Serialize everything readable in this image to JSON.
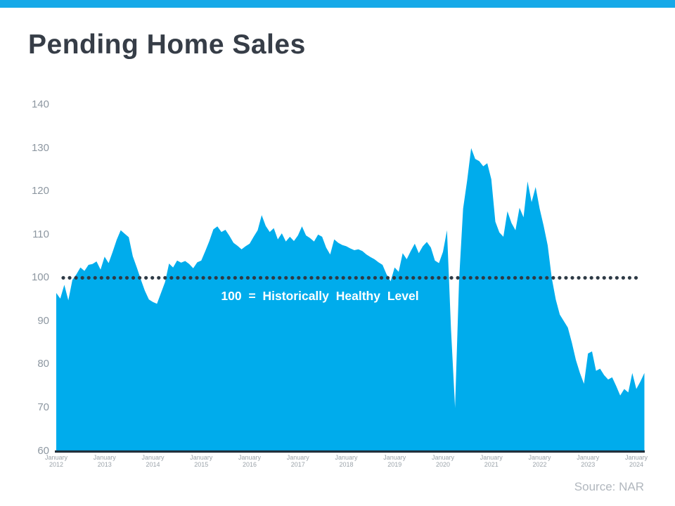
{
  "page": {
    "title": "Pending Home Sales",
    "source": "Source: NAR"
  },
  "colors": {
    "top_bar": "#16A9E8",
    "area_fill": "#00ACEC",
    "dotted_line": "#2E3A45",
    "axis_line": "#22303C",
    "title_text": "#363D47",
    "y_label_text": "#8D97A1",
    "x_label_text": "#9BA3AA",
    "source_text": "#B1B7BE",
    "annotation_text": "#FFFFFF"
  },
  "chart_data": {
    "type": "area",
    "title": "Pending Home Sales",
    "xlabel": "",
    "ylabel": "",
    "ylim": [
      60,
      140
    ],
    "y_ticks": [
      140,
      130,
      120,
      110,
      100,
      90,
      80,
      70,
      60
    ],
    "grid": false,
    "legend": "none",
    "reference_line": {
      "value": 100,
      "style": "dotted",
      "label": "100 = Historically Healthy Level"
    },
    "x_ticks": [
      {
        "month": "January",
        "year": "2012"
      },
      {
        "month": "January",
        "year": "2013"
      },
      {
        "month": "January",
        "year": "2014"
      },
      {
        "month": "January",
        "year": "2015"
      },
      {
        "month": "January",
        "year": "2016"
      },
      {
        "month": "January",
        "year": "2017"
      },
      {
        "month": "January",
        "year": "2018"
      },
      {
        "month": "January",
        "year": "2019"
      },
      {
        "month": "January",
        "year": "2020"
      },
      {
        "month": "January",
        "year": "2021"
      },
      {
        "month": "January",
        "year": "2022"
      },
      {
        "month": "January",
        "year": "2023"
      },
      {
        "month": "January",
        "year": "2024"
      }
    ],
    "series": [
      {
        "name": "Pending Home Sales Index",
        "frequency": "monthly",
        "start": "January 2012",
        "end": "March 2024",
        "values": [
          96.5,
          95.2,
          98.4,
          94.8,
          99.5,
          100.8,
          102.4,
          101.6,
          103.0,
          103.2,
          103.8,
          101.9,
          104.9,
          103.4,
          106.0,
          108.8,
          111.0,
          110.2,
          109.4,
          105.0,
          102.4,
          99.6,
          97.0,
          95.0,
          94.4,
          94.0,
          96.5,
          99.0,
          103.3,
          102.4,
          104.0,
          103.5,
          103.9,
          103.2,
          102.2,
          103.6,
          104.0,
          106.2,
          108.5,
          111.2,
          111.9,
          110.6,
          111.1,
          109.7,
          108.1,
          107.4,
          106.6,
          107.3,
          107.9,
          109.5,
          111.0,
          114.5,
          112.0,
          110.6,
          111.5,
          108.9,
          110.3,
          108.4,
          109.5,
          108.5,
          109.8,
          111.9,
          109.8,
          109.2,
          108.4,
          110.0,
          109.5,
          107.0,
          105.4,
          108.9,
          108.1,
          107.6,
          107.3,
          106.8,
          106.4,
          106.6,
          106.2,
          105.4,
          104.8,
          104.3,
          103.6,
          103.0,
          100.8,
          99.2,
          102.4,
          101.4,
          105.7,
          104.3,
          106.2,
          107.9,
          105.7,
          107.3,
          108.3,
          107.0,
          104.0,
          103.4,
          106.0,
          111.0,
          88.0,
          70.0,
          99.5,
          116.0,
          122.5,
          130.0,
          127.5,
          127.0,
          125.8,
          126.5,
          122.8,
          113.0,
          110.5,
          109.5,
          115.4,
          112.7,
          111.0,
          116.2,
          114.0,
          122.3,
          117.5,
          121.0,
          116.0,
          112.0,
          107.5,
          100.0,
          95.0,
          91.5,
          90.0,
          88.5,
          85.0,
          81.0,
          78.0,
          75.5,
          82.5,
          83.0,
          78.5,
          79.0,
          77.5,
          76.5,
          77.0,
          75.0,
          72.8,
          74.3,
          73.5,
          78.0,
          74.3,
          76.0,
          78.0
        ]
      }
    ],
    "source": "Source: NAR"
  }
}
